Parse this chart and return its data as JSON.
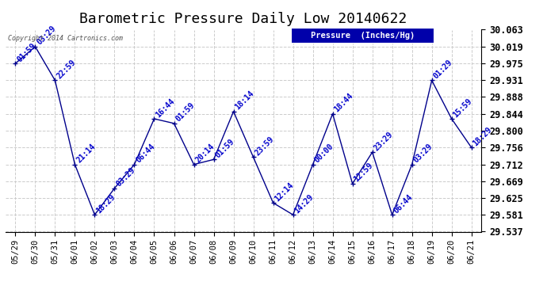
{
  "title": "Barometric Pressure Daily Low 20140622",
  "copyright_text": "Copyright 2014 Cartronics.com",
  "legend_label": "Pressure  (Inches/Hg)",
  "x_labels": [
    "05/29",
    "05/30",
    "05/31",
    "06/01",
    "06/02",
    "06/03",
    "06/04",
    "06/05",
    "06/06",
    "06/07",
    "06/08",
    "06/09",
    "06/10",
    "06/11",
    "06/12",
    "06/13",
    "06/14",
    "06/15",
    "06/16",
    "06/17",
    "06/18",
    "06/19",
    "06/20",
    "06/21"
  ],
  "y_values": [
    29.975,
    30.019,
    29.931,
    29.712,
    29.581,
    29.65,
    29.712,
    29.831,
    29.819,
    29.712,
    29.725,
    29.85,
    29.731,
    29.612,
    29.581,
    29.712,
    29.844,
    29.662,
    29.744,
    29.581,
    29.712,
    29.931,
    29.831,
    29.756
  ],
  "point_labels": [
    "01:59",
    "03:29",
    "22:59",
    "21:14",
    "18:29",
    "03:29",
    "06:44",
    "16:44",
    "01:59",
    "20:14",
    "01:59",
    "18:14",
    "23:59",
    "12:14",
    "14:29",
    "00:00",
    "18:44",
    "12:59",
    "23:29",
    "06:44",
    "03:29",
    "01:29",
    "15:59",
    "18:29"
  ],
  "ylim_min": 29.537,
  "ylim_max": 30.063,
  "yticks": [
    29.537,
    29.581,
    29.625,
    29.669,
    29.712,
    29.756,
    29.8,
    29.844,
    29.888,
    29.931,
    29.975,
    30.019,
    30.063
  ],
  "line_color": "#00008B",
  "point_color": "#00008B",
  "label_color": "#0000cc",
  "background_color": "#ffffff",
  "grid_color": "#cccccc",
  "title_fontsize": 13,
  "tick_fontsize": 7.5,
  "label_fontsize": 7,
  "legend_bg": "#0000aa",
  "legend_fg": "#ffffff"
}
